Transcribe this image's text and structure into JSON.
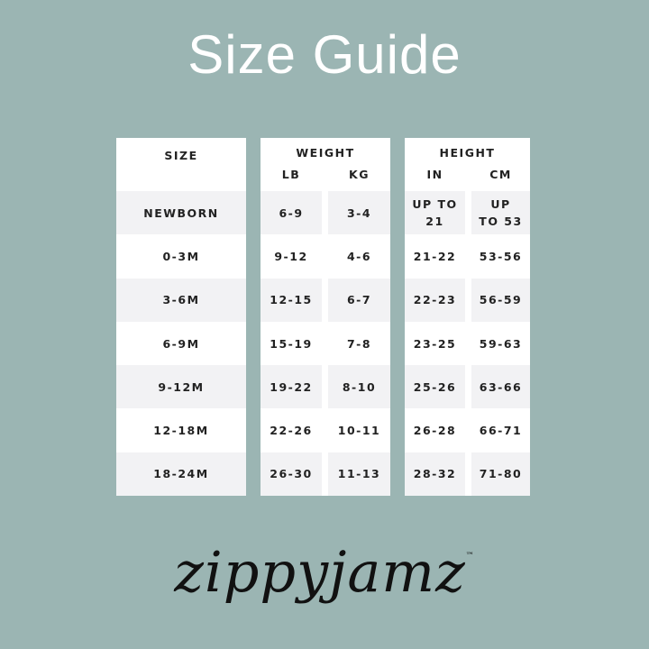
{
  "title": "Size Guide",
  "size_header": "SIZE",
  "weight_header": "WEIGHT",
  "height_header": "HEIGHT",
  "sub_headers": {
    "lb": "LB",
    "kg": "KG",
    "in": "IN",
    "cm": "CM"
  },
  "rows": [
    {
      "size": "NEWBORN",
      "lb": "6-9",
      "kg": "3-4",
      "in": "UP TO 21",
      "cm": "UP TO 53"
    },
    {
      "size": "0-3M",
      "lb": "9-12",
      "kg": "4-6",
      "in": "21-22",
      "cm": "53-56"
    },
    {
      "size": "3-6M",
      "lb": "12-15",
      "kg": "6-7",
      "in": "22-23",
      "cm": "56-59"
    },
    {
      "size": "6-9M",
      "lb": "15-19",
      "kg": "7-8",
      "in": "23-25",
      "cm": "59-63"
    },
    {
      "size": "9-12M",
      "lb": "19-22",
      "kg": "8-10",
      "in": "25-26",
      "cm": "63-66"
    },
    {
      "size": "12-18M",
      "lb": "22-26",
      "kg": "10-11",
      "in": "26-28",
      "cm": "66-71"
    },
    {
      "size": "18-24M",
      "lb": "26-30",
      "kg": "11-13",
      "in": "28-32",
      "cm": "71-80"
    }
  ],
  "logo": {
    "text": "zippyjamz",
    "tm": "™"
  },
  "colors": {
    "background": "#9bb5b3",
    "panel": "#ffffff",
    "row_alt": "#f2f2f4"
  }
}
